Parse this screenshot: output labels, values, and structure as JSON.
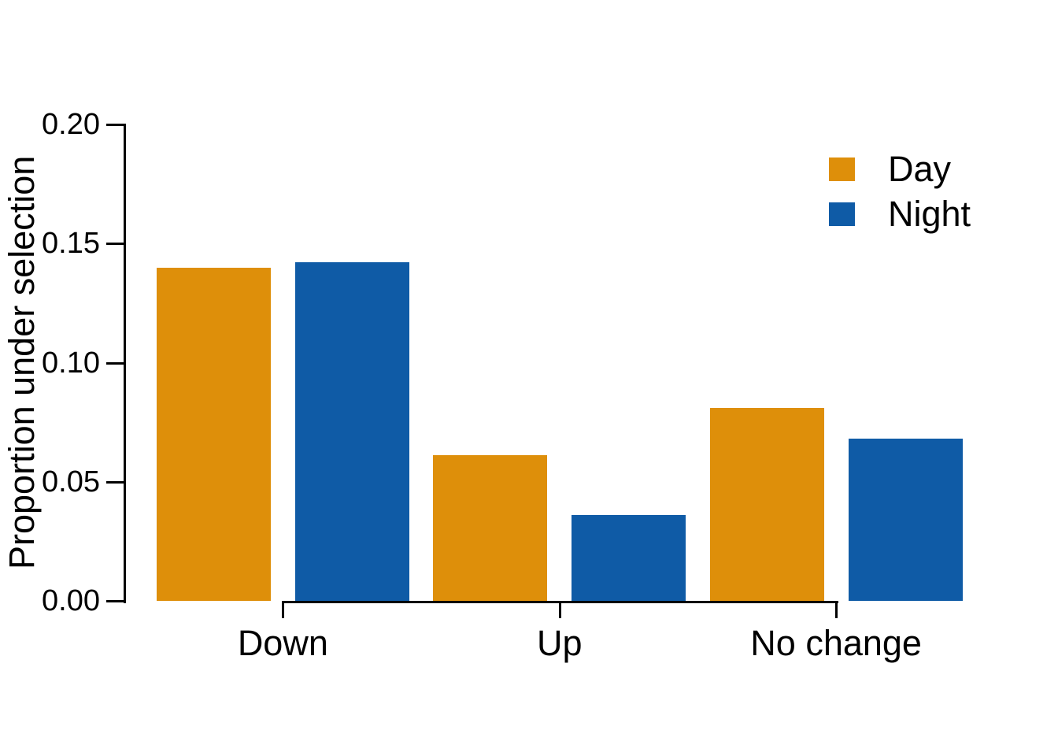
{
  "chart_data": {
    "type": "bar",
    "title": "",
    "xlabel": "",
    "ylabel": "Proportion under selection",
    "categories": [
      "Down",
      "Up",
      "No change"
    ],
    "series": [
      {
        "name": "Day",
        "color": "#DE8F0A",
        "values": [
          0.14,
          0.061,
          0.081
        ]
      },
      {
        "name": "Night",
        "color": "#0F5BA6",
        "values": [
          0.142,
          0.036,
          0.068
        ]
      }
    ],
    "ylim": [
      0,
      0.2
    ],
    "yticks": [
      0,
      0.05,
      0.1,
      0.15,
      0.2
    ],
    "ytick_labels": [
      "0.00",
      "0.05",
      "0.10",
      "0.15",
      "0.20"
    ],
    "grid": false,
    "legend_position": "top-right",
    "axis_color": "#000000",
    "background_color": "#FFFFFF"
  }
}
